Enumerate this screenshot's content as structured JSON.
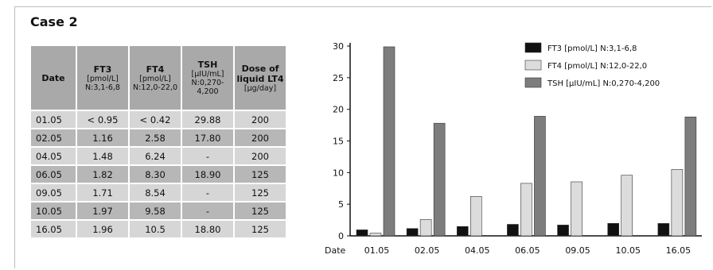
{
  "case_title": "Case 2",
  "table": {
    "headers": [
      {
        "main": "Date",
        "sub": ""
      },
      {
        "main": "FT3",
        "sub": "[pmol/L] N:3,1-6,8"
      },
      {
        "main": "FT4",
        "sub": "[pmol/L] N:12,0-22,0"
      },
      {
        "main": "TSH",
        "sub": "[μIU/mL] N:0,270-4,200"
      },
      {
        "main": "Dose of liquid LT4",
        "sub": "[μg/day]"
      }
    ],
    "rows": [
      [
        "01.05",
        "< 0.95",
        "< 0.42",
        "29.88",
        "200"
      ],
      [
        "02.05",
        "1.16",
        "2.58",
        "17.80",
        "200"
      ],
      [
        "04.05",
        "1.48",
        "6.24",
        "-",
        "200"
      ],
      [
        "06.05",
        "1.82",
        "8.30",
        "18.90",
        "125"
      ],
      [
        "09.05",
        "1.71",
        "8.54",
        "-",
        "125"
      ],
      [
        "10.05",
        "1.97",
        "9.58",
        "-",
        "125"
      ],
      [
        "16.05",
        "1.96",
        "10.5",
        "18.80",
        "125"
      ]
    ]
  },
  "chart_data": {
    "type": "bar",
    "xlabel": "Date",
    "categories": [
      "01.05",
      "02.05",
      "04.05",
      "06.05",
      "09.05",
      "10.05",
      "16.05"
    ],
    "ylim": [
      0,
      30
    ],
    "yticks": [
      0,
      5,
      10,
      15,
      20,
      25,
      30
    ],
    "legend_position": "top-right",
    "grid": false,
    "series": [
      {
        "name": "FT3 [pmol/L] N:3,1-6,8",
        "color": "#111111",
        "values": [
          0.95,
          1.16,
          1.48,
          1.82,
          1.71,
          1.97,
          1.96
        ]
      },
      {
        "name": "FT4 [pmol/L] N:12,0-22,0",
        "color": "#dcdcdc",
        "values": [
          0.42,
          2.58,
          6.24,
          8.3,
          8.54,
          9.58,
          10.5
        ]
      },
      {
        "name": "TSH [μIU/mL] N:0,270-4,200",
        "color": "#7d7d7d",
        "values": [
          29.88,
          17.8,
          null,
          18.9,
          null,
          null,
          18.8
        ]
      }
    ]
  }
}
